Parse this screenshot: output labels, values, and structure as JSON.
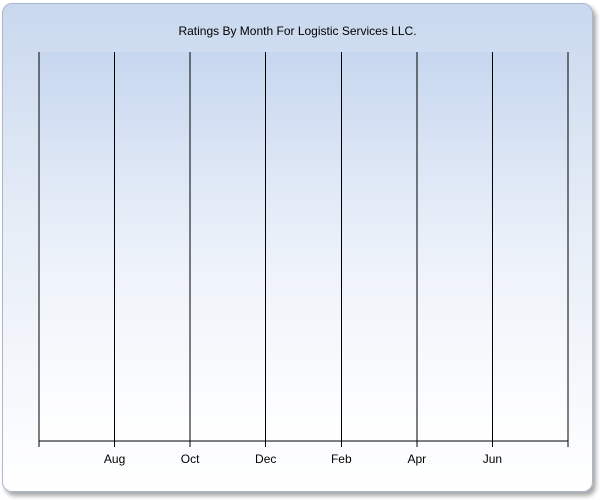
{
  "chart_data": {
    "type": "bar",
    "title": "Ratings By Month For Logistic Services LLC.",
    "xlabel": "",
    "ylabel": "",
    "categories": [
      "Aug",
      "Oct",
      "Dec",
      "Feb",
      "Apr",
      "Jun"
    ],
    "series": [],
    "grid": "vertical",
    "legend": "none",
    "colors": {
      "plot_top": "#c9d8ee",
      "plot_bottom": "#ffffff",
      "line": "#000000"
    }
  }
}
